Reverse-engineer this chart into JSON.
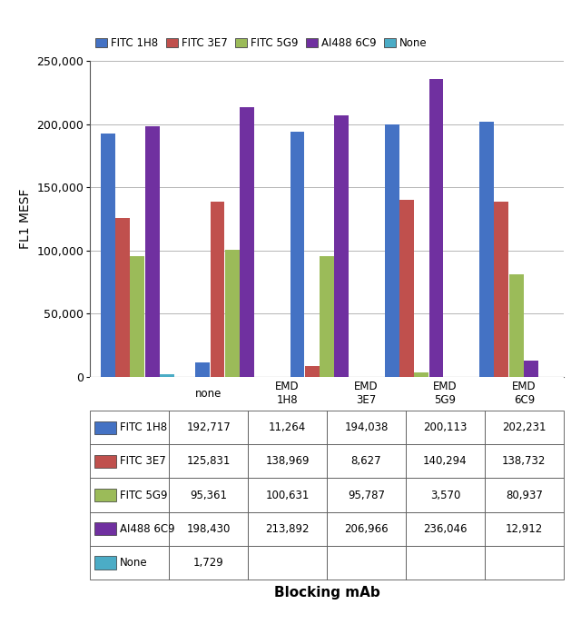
{
  "categories": [
    "none",
    "EMD\n1H8",
    "EMD\n3E7",
    "EMD\n5G9",
    "EMD\n6C9"
  ],
  "series": [
    {
      "label": "FITC 1H8",
      "color": "#4472C4",
      "values": [
        192717,
        11264,
        194038,
        200113,
        202231
      ]
    },
    {
      "label": "FITC 3E7",
      "color": "#C0504D",
      "values": [
        125831,
        138969,
        8627,
        140294,
        138732
      ]
    },
    {
      "label": "FITC 5G9",
      "color": "#9BBB59",
      "values": [
        95361,
        100631,
        95787,
        3570,
        80937
      ]
    },
    {
      "label": "AI488 6C9",
      "color": "#7030A0",
      "values": [
        198430,
        213892,
        206966,
        236046,
        12912
      ]
    },
    {
      "label": "None",
      "color": "#4BACC6",
      "values": [
        1729,
        null,
        null,
        null,
        null
      ]
    }
  ],
  "ylabel": "FL1 MESF",
  "xlabel": "Blocking mAb",
  "ylim": [
    0,
    250000
  ],
  "yticks": [
    0,
    50000,
    100000,
    150000,
    200000,
    250000
  ],
  "ytick_labels": [
    "0",
    "50,000",
    "100,000",
    "150,000",
    "200,000",
    "250,000"
  ],
  "table_rows": [
    {
      "label": "FITC 1H8",
      "color": "#4472C4",
      "values": [
        "192,717",
        "11,264",
        "194,038",
        "200,113",
        "202,231"
      ]
    },
    {
      "label": "FITC 3E7",
      "color": "#C0504D",
      "values": [
        "125,831",
        "138,969",
        "8,627",
        "140,294",
        "138,732"
      ]
    },
    {
      "label": "FITC 5G9",
      "color": "#9BBB59",
      "values": [
        "95,361",
        "100,631",
        "95,787",
        "3,570",
        "80,937"
      ]
    },
    {
      "label": "AI488 6C9",
      "color": "#7030A0",
      "values": [
        "198,430",
        "213,892",
        "206,966",
        "236,046",
        "12,912"
      ]
    },
    {
      "label": "None",
      "color": "#4BACC6",
      "values": [
        "1,729",
        "",
        "",
        "",
        ""
      ]
    }
  ],
  "legend_labels": [
    "FITC 1H8",
    "FITC 3E7",
    "FITC 5G9",
    "AI488 6C9",
    "None"
  ],
  "legend_colors": [
    "#4472C4",
    "#C0504D",
    "#9BBB59",
    "#7030A0",
    "#4BACC6"
  ]
}
